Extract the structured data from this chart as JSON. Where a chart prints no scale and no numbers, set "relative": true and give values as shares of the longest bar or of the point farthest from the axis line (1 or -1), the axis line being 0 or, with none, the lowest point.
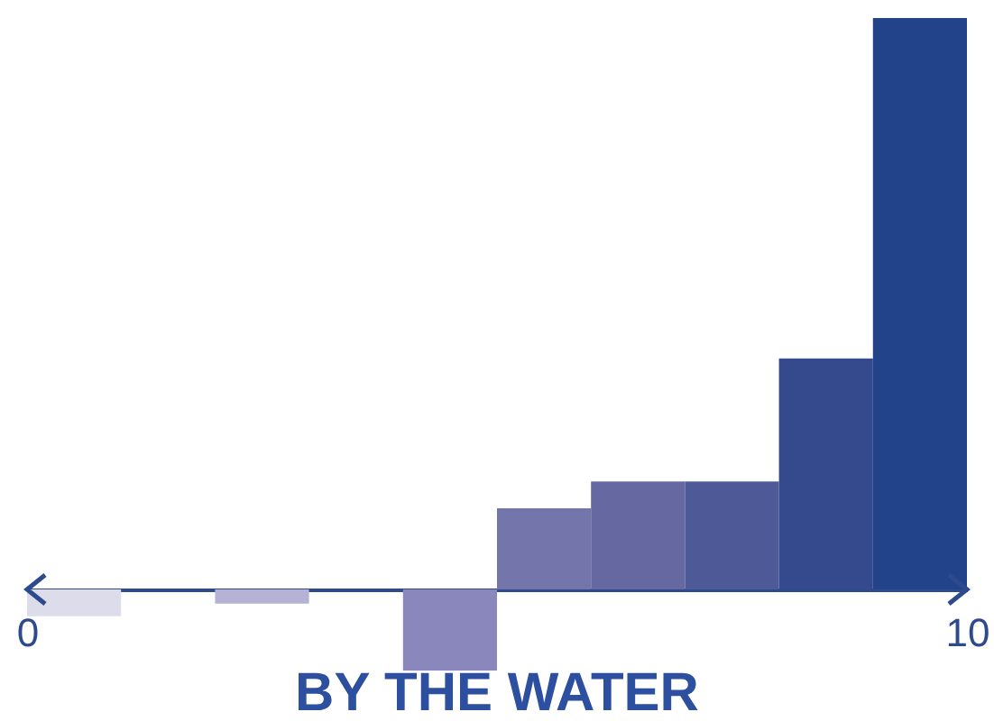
{
  "chart_data": {
    "type": "bar",
    "title": "BY THE WATER",
    "relative": true,
    "x": [
      0.5,
      2.5,
      4.5,
      5.5,
      6.5,
      7.5,
      8.5,
      9.5
    ],
    "values": [
      -0.047,
      -0.025,
      -0.142,
      0.142,
      0.189,
      0.189,
      0.404,
      1
    ],
    "colors": [
      "#dcdcea",
      "#b4b3d5",
      "#8987bb",
      "#7476ab",
      "#6668a2",
      "#4e5a98",
      "#344a8c",
      "#224289"
    ],
    "xlim": [
      0,
      10
    ],
    "xticks": [
      0,
      10
    ],
    "grid": false
  }
}
